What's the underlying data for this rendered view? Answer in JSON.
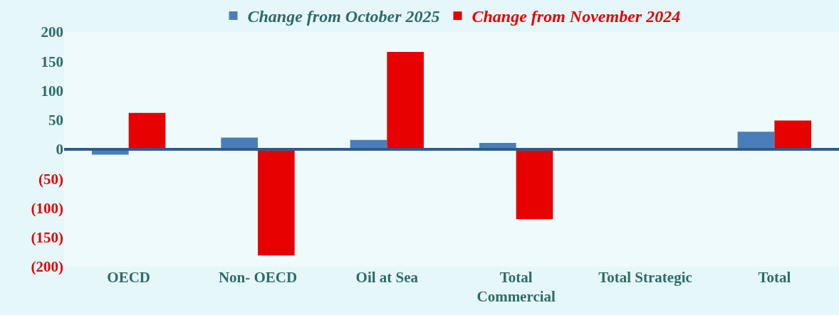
{
  "chart_data": {
    "type": "bar",
    "categories": [
      "OECD",
      "Non- OECD",
      "Oil at Sea",
      "Total Commercial",
      "Total Strategic",
      "Total"
    ],
    "series": [
      {
        "name": "Change from October 2025",
        "color": "#4a7ebb",
        "values": [
          -9,
          20,
          16,
          11,
          0,
          30
        ]
      },
      {
        "name": "Change from November 2024",
        "color": "#e60000",
        "values": [
          62,
          -181,
          166,
          -119,
          0,
          49
        ]
      }
    ],
    "ylim": [
      -200,
      200
    ],
    "yticks": [
      200,
      150,
      100,
      50,
      0,
      {
        "value": -50,
        "label": "(50)"
      },
      {
        "value": -100,
        "label": "(100)"
      },
      {
        "value": -150,
        "label": "(150)"
      },
      {
        "value": -200,
        "label": "(200)"
      }
    ],
    "ref_lines": [
      {
        "axis": "y",
        "value": 0,
        "color": "#2f5a8c"
      }
    ],
    "grid": false,
    "legend": "top"
  }
}
